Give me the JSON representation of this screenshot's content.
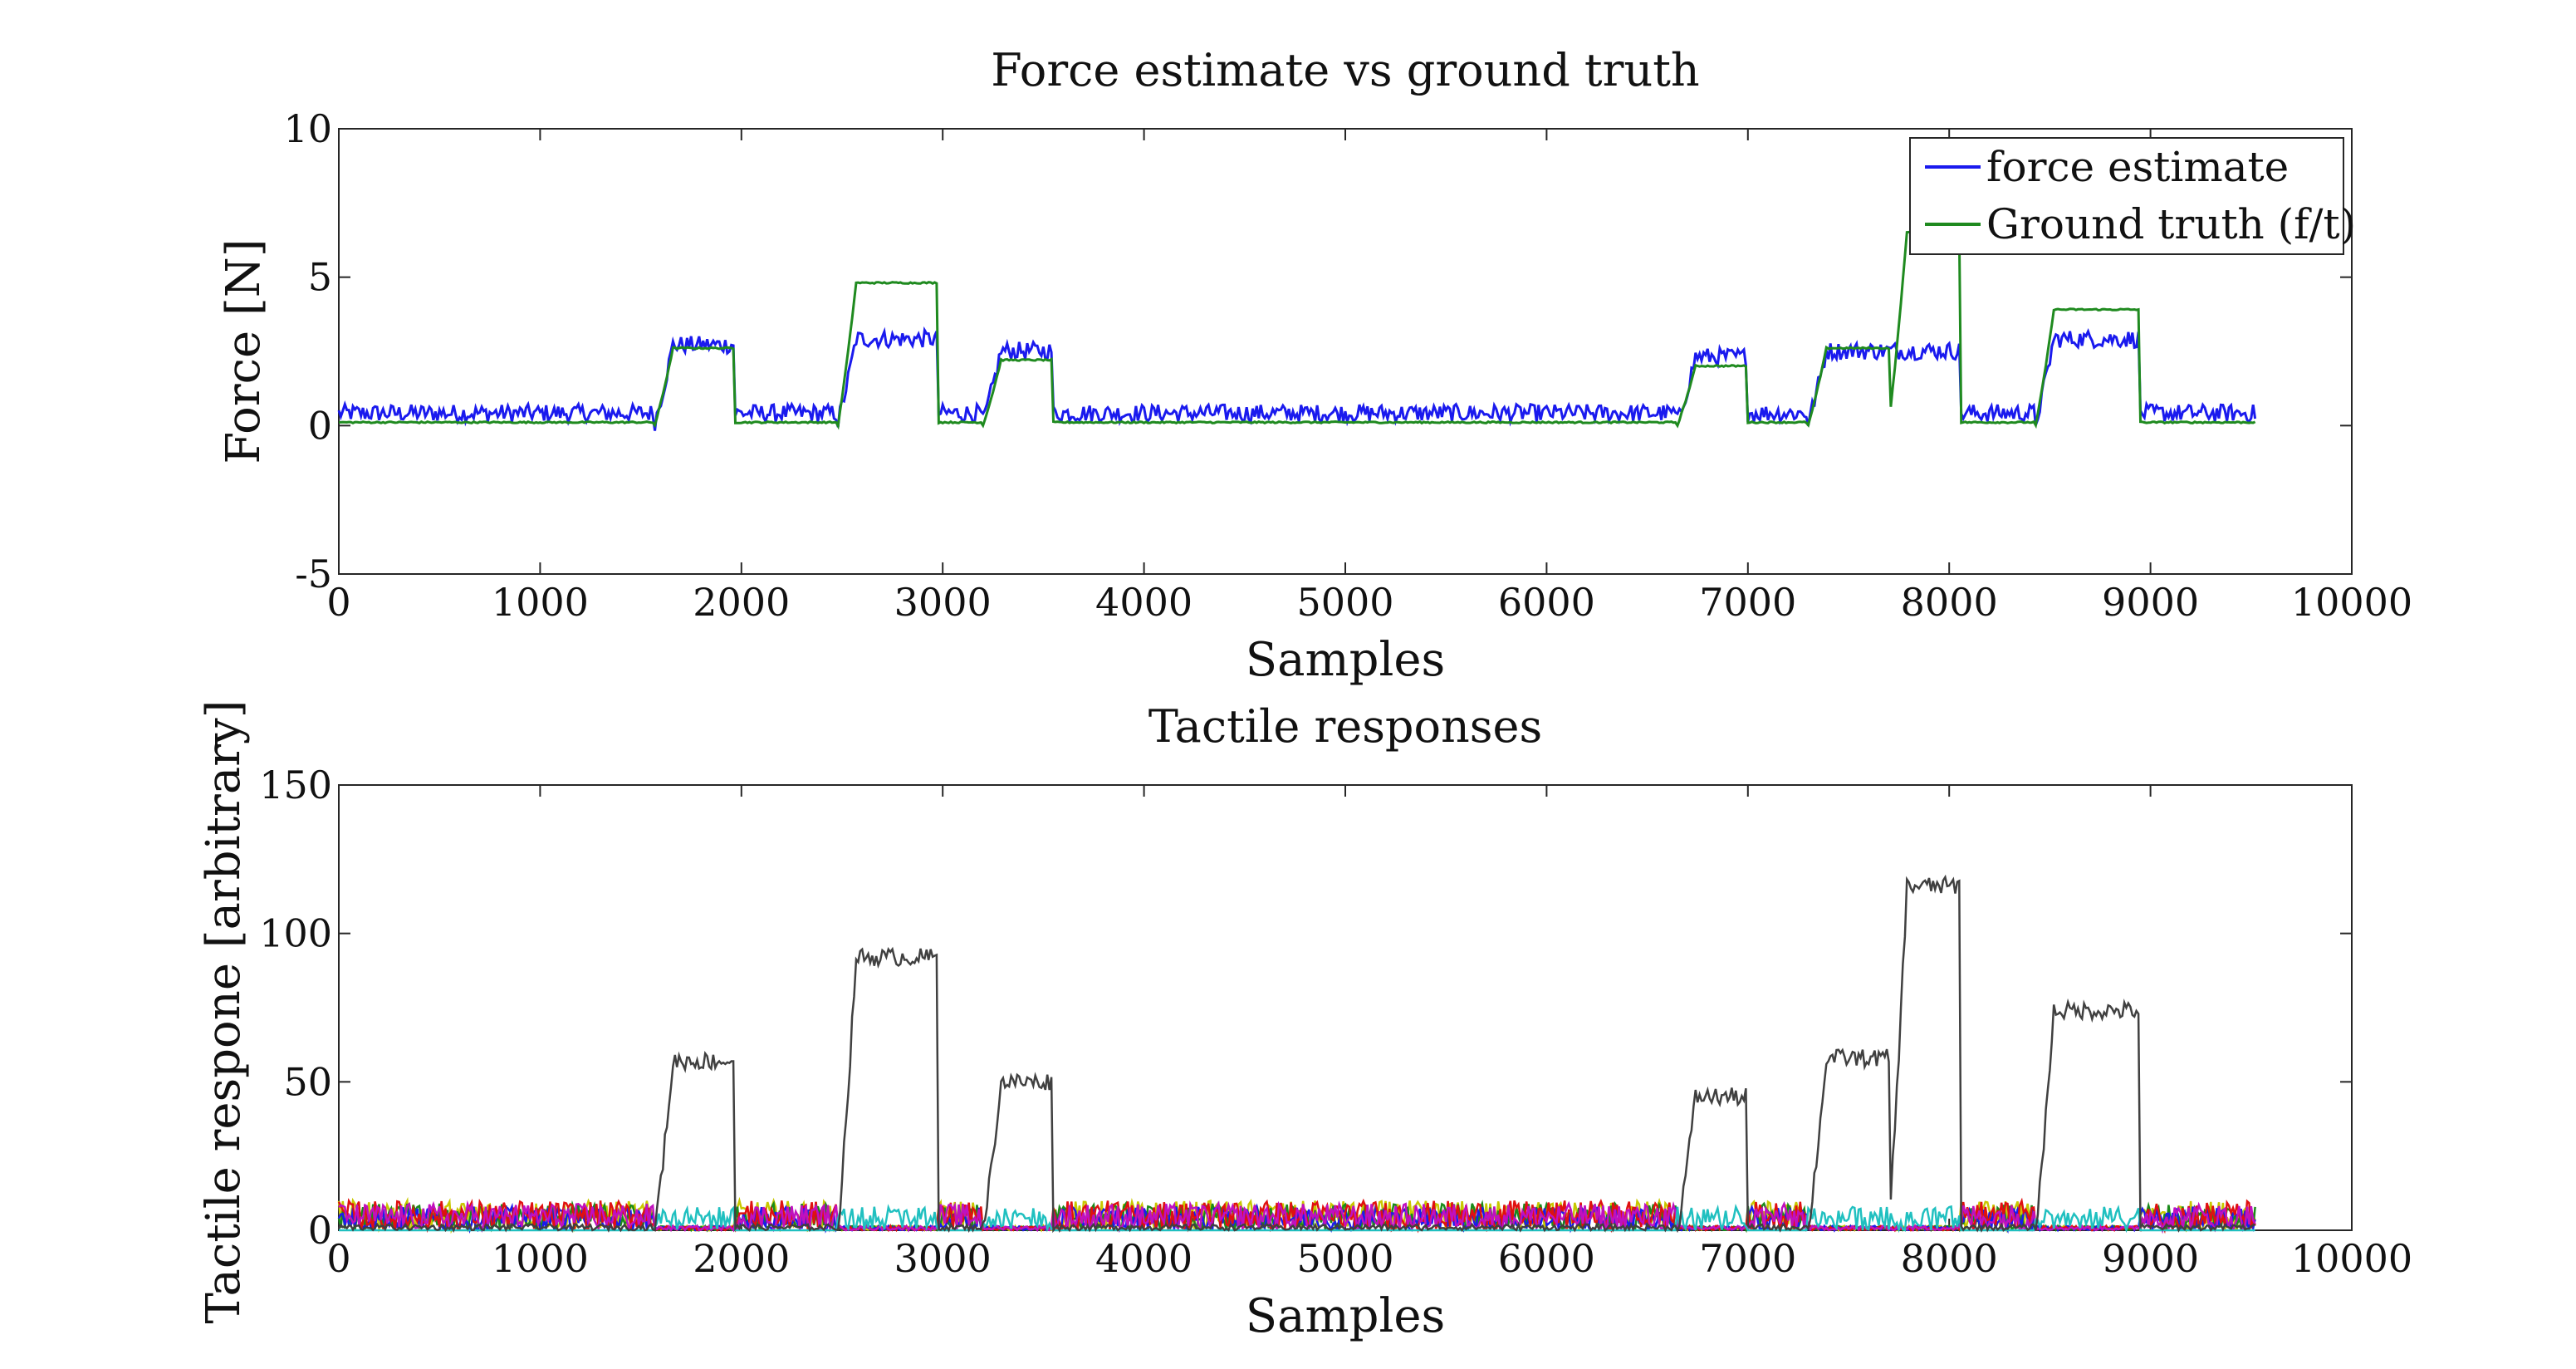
{
  "chart_data": [
    {
      "type": "line",
      "title": "Force estimate vs ground truth",
      "xlabel": "Samples",
      "ylabel": "Force [N]",
      "xlim": [
        0,
        10000
      ],
      "ylim": [
        -5,
        10
      ],
      "xticks": [
        "0",
        "1000",
        "2000",
        "3000",
        "4000",
        "5000",
        "6000",
        "7000",
        "8000",
        "9000",
        "10000"
      ],
      "yticks": [
        "-5",
        "0",
        "5",
        "10"
      ],
      "legend_position": "top-right",
      "series": [
        {
          "name": "force estimate",
          "color": "#1a1aee",
          "baseline": 0.3,
          "noise": 0.6,
          "segments": [
            {
              "x0": 1570,
              "x1": 1960,
              "level": 2.6
            },
            {
              "x0": 2480,
              "x1": 2970,
              "level": 2.8
            },
            {
              "x0": 3200,
              "x1": 3540,
              "level": 2.4
            },
            {
              "x0": 6650,
              "x1": 6990,
              "level": 2.2
            },
            {
              "x0": 7300,
              "x1": 8050,
              "level": 2.4
            },
            {
              "x0": 8430,
              "x1": 8940,
              "level": 2.8
            }
          ],
          "end_x": 9520
        },
        {
          "name": "Ground truth (f/t)",
          "color": "#1f8a1f",
          "baseline": 0.1,
          "noise": 0.05,
          "segments": [
            {
              "x0": 1570,
              "x1": 1960,
              "level": 2.6
            },
            {
              "x0": 2480,
              "x1": 2970,
              "level": 4.8
            },
            {
              "x0": 3200,
              "x1": 3540,
              "level": 2.2
            },
            {
              "x0": 6650,
              "x1": 6990,
              "level": 2.0
            },
            {
              "x0": 7300,
              "x1": 7700,
              "level": 2.6
            },
            {
              "x0": 7700,
              "x1": 8050,
              "level": 6.5
            },
            {
              "x0": 8430,
              "x1": 8940,
              "level": 3.9
            }
          ],
          "end_x": 9520
        }
      ]
    },
    {
      "type": "line",
      "title": "Tactile responses",
      "xlabel": "Samples",
      "ylabel": "Tactile respone [arbitrary]",
      "xlim": [
        0,
        10000
      ],
      "ylim": [
        0,
        150
      ],
      "xticks": [
        "0",
        "1000",
        "2000",
        "3000",
        "4000",
        "5000",
        "6000",
        "7000",
        "8000",
        "9000",
        "10000"
      ],
      "yticks": [
        "0",
        "50",
        "100",
        "150"
      ],
      "series": [
        {
          "color": "#c8c800",
          "baseline": 2,
          "noise": 10,
          "end_x": 9520
        },
        {
          "color": "#1a8a1a",
          "baseline": 2,
          "noise": 9,
          "end_x": 9520
        },
        {
          "color": "#1a1aee",
          "baseline": 2,
          "noise": 8,
          "end_x": 9520
        },
        {
          "color": "#e01010",
          "baseline": 2,
          "noise": 10,
          "end_x": 9520
        },
        {
          "color": "#c010c0",
          "baseline": 2,
          "noise": 9,
          "end_x": 9520
        },
        {
          "color": "#20c0c0",
          "baseline": 0,
          "noise": 8,
          "end_x": 9520,
          "active_only": true
        },
        {
          "color": "#404040",
          "baseline": 0,
          "noise": 6,
          "end_x": 9520,
          "segments": [
            {
              "x0": 1570,
              "x1": 1960,
              "level": 57
            },
            {
              "x0": 2480,
              "x1": 2970,
              "level": 92
            },
            {
              "x0": 3200,
              "x1": 3540,
              "level": 50
            },
            {
              "x0": 6650,
              "x1": 6990,
              "level": 45
            },
            {
              "x0": 7300,
              "x1": 7700,
              "level": 58
            },
            {
              "x0": 7700,
              "x1": 8050,
              "level": 116
            },
            {
              "x0": 8430,
              "x1": 8940,
              "level": 74
            }
          ]
        }
      ]
    }
  ]
}
